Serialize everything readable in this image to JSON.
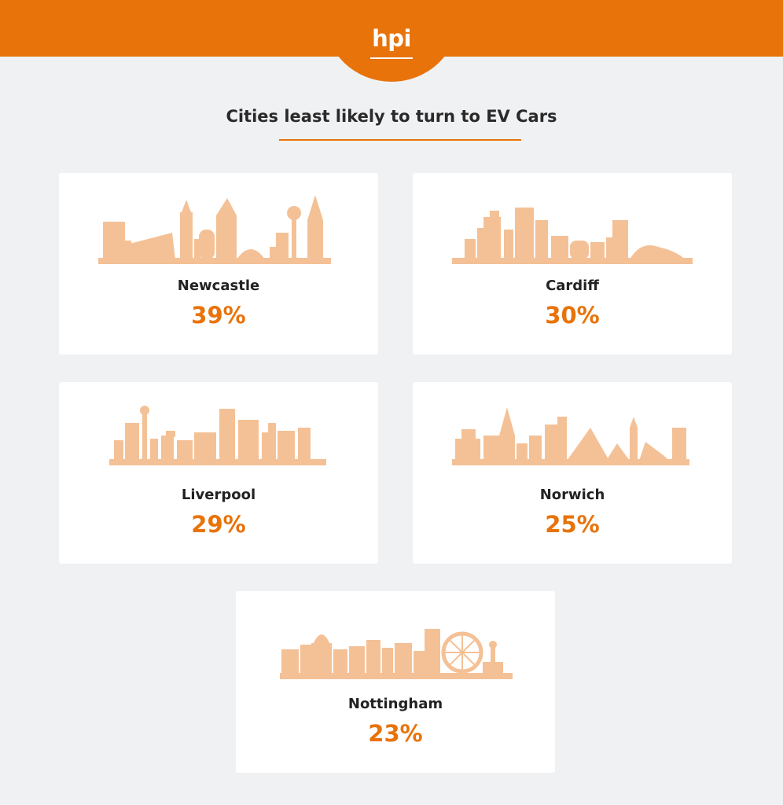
{
  "header": {
    "logo_text": "hpi"
  },
  "colors": {
    "brand_orange": "#e8730a",
    "skyline": "#f4c197",
    "card": "#ffffff",
    "background": "#f0f1f3"
  },
  "chart_data": {
    "type": "table",
    "title": "Cities least likely to turn to EV Cars",
    "categories": [
      "Newcastle",
      "Cardiff",
      "Liverpool",
      "Norwich",
      "Nottingham"
    ],
    "values": [
      39,
      30,
      29,
      25,
      23
    ],
    "value_labels": [
      "39%",
      "30%",
      "29%",
      "25%",
      "23%"
    ],
    "unit": "%"
  }
}
